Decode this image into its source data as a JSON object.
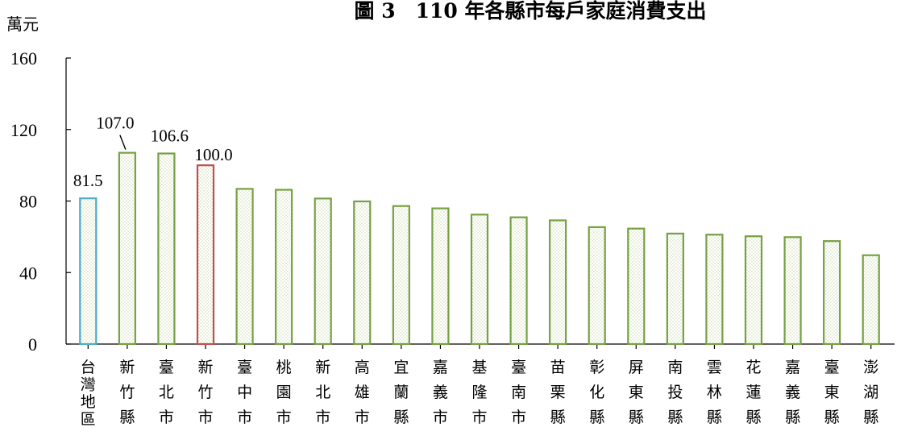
{
  "chart_data": {
    "type": "bar",
    "title": "圖 3　110 年各縣市每戶家庭消費支出",
    "ylabel": "萬元",
    "xlabel": "",
    "ylim": [
      0,
      160
    ],
    "yticks": [
      0,
      40,
      80,
      120,
      160
    ],
    "grid": false,
    "categories": [
      "台灣地區",
      "新竹縣",
      "臺北市",
      "新竹市",
      "臺中市",
      "桃園市",
      "新北市",
      "高雄市",
      "宜蘭縣",
      "嘉義市",
      "基隆市",
      "臺南市",
      "苗栗縣",
      "彰化縣",
      "屏東縣",
      "南投縣",
      "雲林縣",
      "花蓮縣",
      "嘉義縣",
      "臺東縣",
      "澎湖縣"
    ],
    "values": [
      81.5,
      107.0,
      106.6,
      100.0,
      86.8,
      86.3,
      81.4,
      79.8,
      77.2,
      75.9,
      72.4,
      70.9,
      69.2,
      65.4,
      64.6,
      61.8,
      61.2,
      60.3,
      59.8,
      57.6,
      49.7
    ],
    "data_labels": {
      "0": "81.5",
      "1": "107.0",
      "2": "106.6",
      "3": "100.0"
    },
    "colors": {
      "default": "#77a043",
      "highlight_total": "#4bacc6",
      "highlight_city": "#c0504d",
      "fill_pattern": "#c8d9a8"
    },
    "highlight": {
      "0": "highlight_total",
      "3": "highlight_city"
    }
  }
}
